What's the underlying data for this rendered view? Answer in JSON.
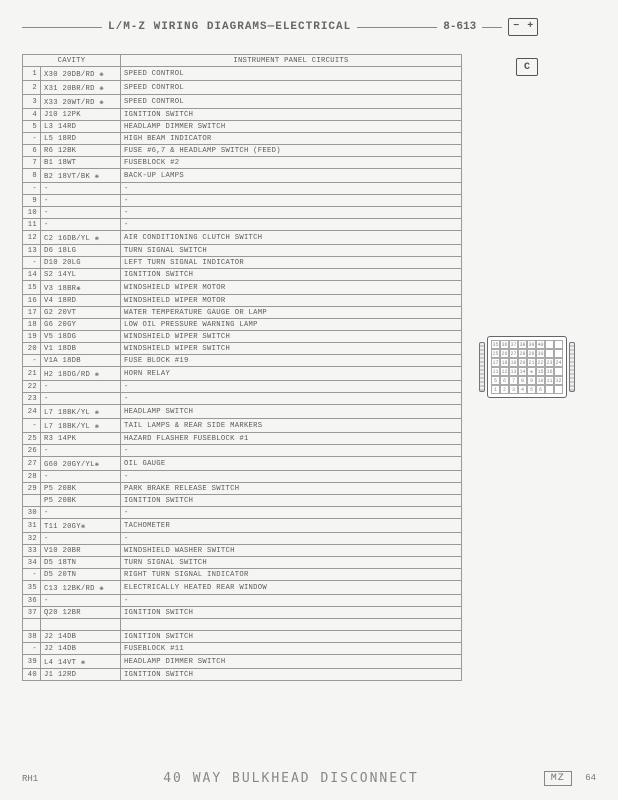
{
  "header": {
    "title": "L/M-Z WIRING DIAGRAMS—ELECTRICAL",
    "page": "8-613",
    "battery": {
      "neg": "−",
      "pos": "+"
    }
  },
  "side": {
    "c_label": "C",
    "connector_cells": [
      "35",
      "36",
      "37",
      "38",
      "39",
      "40",
      "",
      "",
      "25",
      "26",
      "27",
      "28",
      "29",
      "30",
      "",
      "",
      "17",
      "18",
      "19",
      "20",
      "21",
      "22",
      "23",
      "24",
      "11",
      "12",
      "13",
      "14",
      "❋",
      "15",
      "16",
      "",
      "5",
      "6",
      "7",
      "8",
      "9",
      "10",
      "11",
      "12",
      "1",
      "2",
      "3",
      "4",
      "5",
      "6",
      "",
      ""
    ]
  },
  "table": {
    "head": {
      "cavity": "CAVITY",
      "circuits": "INSTRUMENT PANEL CIRCUITS"
    },
    "rows": [
      {
        "n": "1",
        "code": "X30 20DB/RD ❋",
        "desc": "SPEED CONTROL"
      },
      {
        "n": "2",
        "code": "X31 20BR/RD ❋",
        "desc": "SPEED CONTROL"
      },
      {
        "n": "3",
        "code": "X33 20WT/RD ❋",
        "desc": "SPEED CONTROL"
      },
      {
        "n": "4",
        "code": "J10 12PK",
        "desc": "IGNITION SWITCH"
      },
      {
        "n": "5",
        "code": "L3 14RD",
        "desc": "HEADLAMP DIMMER SWITCH"
      },
      {
        "n": "-",
        "code": "L5 18RD",
        "desc": "HIGH BEAM INDICATOR"
      },
      {
        "n": "6",
        "code": "R6 12BK",
        "desc": "FUSE #6,7 & HEADLAMP SWITCH (FEED)"
      },
      {
        "n": "7",
        "code": "B1 18WT",
        "desc": "FUSEBLOCK #2"
      },
      {
        "n": "8",
        "code": "B2 18VT/BK ❋",
        "desc": "BACK-UP LAMPS"
      },
      {
        "n": "-",
        "code": "-",
        "desc": "-"
      },
      {
        "n": "9",
        "code": "-",
        "desc": "-"
      },
      {
        "n": "10",
        "code": "-",
        "desc": "-"
      },
      {
        "n": "11",
        "code": "-",
        "desc": "-"
      },
      {
        "n": "12",
        "code": "C2 16DB/YL ❋",
        "desc": "AIR CONDITIONING CLUTCH SWITCH"
      },
      {
        "n": "13",
        "code": "D6 18LG",
        "desc": "TURN SIGNAL SWITCH"
      },
      {
        "n": "-",
        "code": "D10 20LG",
        "desc": "LEFT TURN SIGNAL INDICATOR"
      },
      {
        "n": "14",
        "code": "S2 14YL",
        "desc": "IGNITION SWITCH"
      },
      {
        "n": "15",
        "code": "V3 18BR❋",
        "desc": "WINDSHIELD WIPER MOTOR"
      },
      {
        "n": "16",
        "code": "V4 18RD",
        "desc": "WINDSHIELD WIPER MOTOR"
      },
      {
        "n": "17",
        "code": "G2 20VT",
        "desc": "WATER TEMPERATURE GAUGE OR LAMP"
      },
      {
        "n": "18",
        "code": "G6 20GY",
        "desc": "LOW OIL PRESSURE WARNING LAMP"
      },
      {
        "n": "19",
        "code": "V5 18DG",
        "desc": "WINDSHIELD WIPER SWITCH"
      },
      {
        "n": "20",
        "code": "V1 18DB",
        "desc": "WINDSHIELD WIPER SWITCH"
      },
      {
        "n": "-",
        "code": "V1A 18DB",
        "desc": "FUSE BLOCK #19"
      },
      {
        "n": "21",
        "code": "H2 18DG/RD ❋",
        "desc": "HORN RELAY"
      },
      {
        "n": "22",
        "code": "-",
        "desc": "-"
      },
      {
        "n": "23",
        "code": "-",
        "desc": "-"
      },
      {
        "n": "24",
        "code": "L7 18BK/YL ❋",
        "desc": "HEADLAMP SWITCH"
      },
      {
        "n": "-",
        "code": "L7 18BK/YL ❋",
        "desc": "TAIL LAMPS & REAR SIDE MARKERS"
      },
      {
        "n": "25",
        "code": "R3 14PK",
        "desc": "HAZARD FLASHER FUSEBLOCK #1"
      },
      {
        "n": "26",
        "code": "-",
        "desc": "-"
      },
      {
        "n": "27",
        "code": "G60 20GY/YL❋",
        "desc": "OIL GAUGE"
      },
      {
        "n": "28",
        "code": "-",
        "desc": "-"
      },
      {
        "n": "29",
        "code": "P5 20BK",
        "desc": "PARK BRAKE RELEASE SWITCH"
      },
      {
        "n": "",
        "code": "P5 20BK",
        "desc": "IGNITION SWITCH"
      },
      {
        "n": "30",
        "code": "-",
        "desc": "-"
      },
      {
        "n": "31",
        "code": "T11 20GY❋",
        "desc": "TACHOMETER"
      },
      {
        "n": "32",
        "code": "-",
        "desc": "-"
      },
      {
        "n": "33",
        "code": "V10 20BR",
        "desc": "WINDSHIELD WASHER SWITCH"
      },
      {
        "n": "34",
        "code": "D5 18TN",
        "desc": "TURN SIGNAL SWITCH"
      },
      {
        "n": "-",
        "code": "D5 20TN",
        "desc": "RIGHT TURN SIGNAL INDICATOR"
      },
      {
        "n": "35",
        "code": "C13 12BK/RD ❋",
        "desc": "ELECTRICALLY HEATED REAR WINDOW"
      },
      {
        "n": "36",
        "code": "-",
        "desc": "-"
      },
      {
        "n": "37",
        "code": "Q20 12BR",
        "desc": "IGNITION SWITCH"
      },
      {
        "n": "",
        "code": "",
        "desc": ""
      },
      {
        "n": "38",
        "code": "J2 14DB",
        "desc": "IGNITION SWITCH"
      },
      {
        "n": "-",
        "code": "J2 14DB",
        "desc": "FUSEBLOCK #11"
      },
      {
        "n": "39",
        "code": "L4 14VT ❋",
        "desc": "HEADLAMP DIMMER SWITCH"
      },
      {
        "n": "40",
        "code": "J1 12RD",
        "desc": "IGNITION SWITCH"
      }
    ]
  },
  "footer": {
    "left": "RH1",
    "title": "40 WAY BULKHEAD DISCONNECT",
    "tag": "MZ",
    "num": "64"
  }
}
